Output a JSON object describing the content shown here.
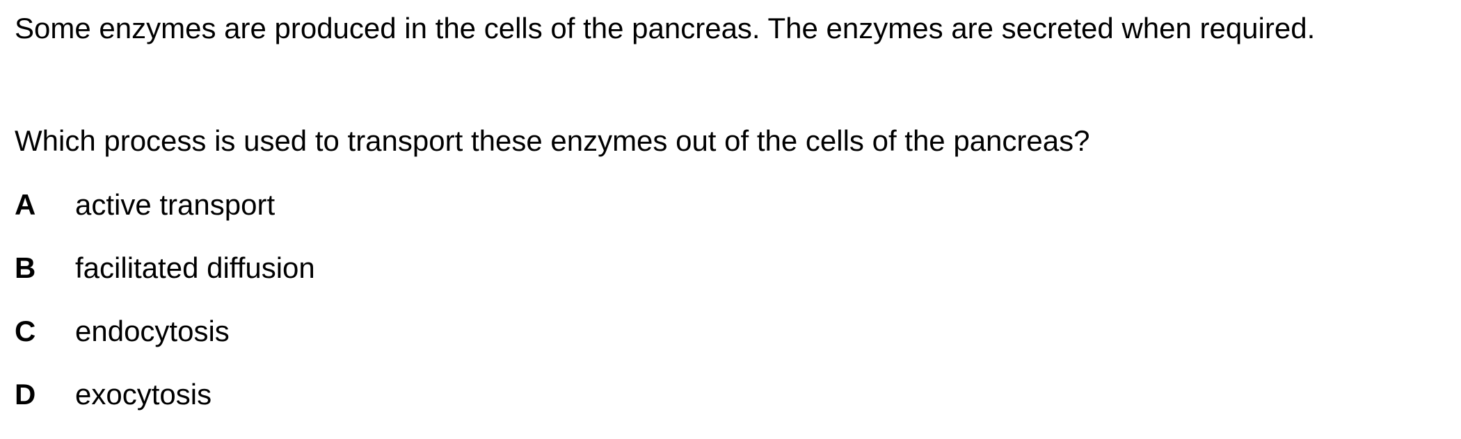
{
  "question": {
    "stem": "Some enzymes are produced in the cells of the pancreas. The enzymes are secreted when required.",
    "prompt": "Which process is used to transport these enzymes out of the cells of the pancreas?",
    "options": [
      {
        "letter": "A",
        "text": "active transport"
      },
      {
        "letter": "B",
        "text": "facilitated diffusion"
      },
      {
        "letter": "C",
        "text": "endocytosis"
      },
      {
        "letter": "D",
        "text": "exocytosis"
      }
    ]
  }
}
